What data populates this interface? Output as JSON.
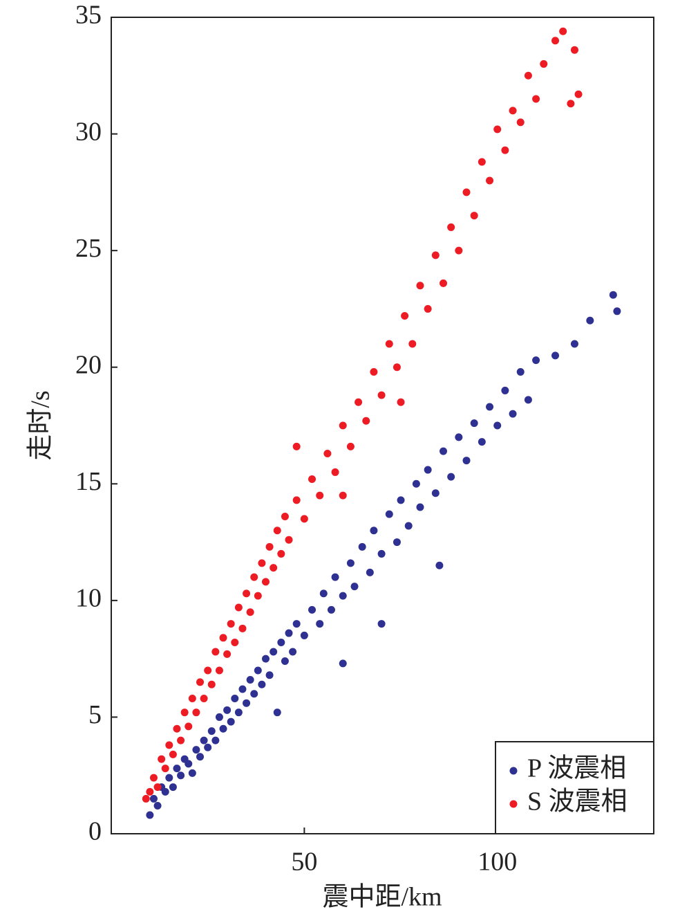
{
  "chart_data": {
    "type": "scatter",
    "xlabel": "震中距/km",
    "ylabel": "走时/s",
    "xlim": [
      0,
      140.5
    ],
    "ylim": [
      0,
      35
    ],
    "xticks": [
      50,
      100
    ],
    "yticks": [
      0,
      5,
      10,
      15,
      20,
      25,
      30,
      35
    ],
    "legend": "lower right",
    "series": [
      {
        "name": "P 波震相",
        "color": "#2e3192",
        "x": [
          10,
          11,
          12,
          13,
          14,
          15,
          16,
          17,
          18,
          19,
          20,
          21,
          22,
          23,
          24,
          25,
          26,
          27,
          28,
          29,
          30,
          31,
          32,
          33,
          34,
          35,
          36,
          37,
          38,
          39,
          40,
          41,
          42,
          43,
          44,
          45,
          46,
          47,
          48,
          50,
          52,
          54,
          55,
          57,
          58,
          60,
          62,
          63,
          65,
          67,
          68,
          70,
          72,
          74,
          75,
          77,
          79,
          80,
          82,
          84,
          86,
          88,
          90,
          92,
          94,
          96,
          98,
          100,
          102,
          104,
          106,
          108,
          110,
          115,
          120,
          124,
          130,
          131,
          60,
          70,
          85
        ],
        "values": [
          0.8,
          1.5,
          1.2,
          2.0,
          1.8,
          2.4,
          2.0,
          2.8,
          2.5,
          3.2,
          3.0,
          2.6,
          3.6,
          3.3,
          4.0,
          3.7,
          4.4,
          4.0,
          5.0,
          4.5,
          5.3,
          4.8,
          5.8,
          5.2,
          6.2,
          5.6,
          6.6,
          6.0,
          7.0,
          6.4,
          7.5,
          6.8,
          7.8,
          5.2,
          8.2,
          7.4,
          8.6,
          7.8,
          9.0,
          8.5,
          9.6,
          9.0,
          10.3,
          9.6,
          11.0,
          10.2,
          11.6,
          10.6,
          12.3,
          11.2,
          13.0,
          12.0,
          13.7,
          12.5,
          14.3,
          13.2,
          15.0,
          14.0,
          15.6,
          14.6,
          16.4,
          15.3,
          17.0,
          16.0,
          17.6,
          16.8,
          18.3,
          17.5,
          19.0,
          18.0,
          19.8,
          18.6,
          20.3,
          20.5,
          21.0,
          22.0,
          23.1,
          22.4,
          7.3,
          9.0,
          11.5
        ]
      },
      {
        "name": "S 波震相",
        "color": "#ed1c24",
        "x": [
          9,
          10,
          11,
          12,
          13,
          14,
          15,
          16,
          17,
          18,
          19,
          20,
          21,
          22,
          23,
          24,
          25,
          26,
          27,
          28,
          29,
          30,
          31,
          32,
          33,
          34,
          35,
          36,
          37,
          38,
          39,
          40,
          41,
          42,
          43,
          44,
          45,
          46,
          48,
          50,
          52,
          54,
          56,
          58,
          60,
          62,
          64,
          66,
          68,
          70,
          72,
          74,
          76,
          78,
          80,
          82,
          84,
          86,
          88,
          90,
          92,
          94,
          96,
          98,
          100,
          102,
          104,
          106,
          108,
          110,
          112,
          115,
          117,
          120,
          121,
          119,
          60,
          75,
          48
        ],
        "values": [
          1.5,
          1.8,
          2.4,
          2.0,
          3.2,
          2.8,
          3.8,
          3.4,
          4.5,
          4.0,
          5.2,
          4.6,
          5.8,
          5.2,
          6.5,
          5.8,
          7.0,
          6.4,
          7.8,
          7.0,
          8.4,
          7.7,
          9.0,
          8.2,
          9.7,
          8.8,
          10.3,
          9.5,
          11.0,
          10.2,
          11.6,
          10.8,
          12.3,
          11.4,
          13.0,
          12.0,
          13.6,
          12.6,
          14.3,
          13.5,
          15.2,
          14.5,
          16.3,
          15.5,
          17.5,
          16.6,
          18.5,
          17.7,
          19.8,
          18.8,
          21.0,
          20.0,
          22.2,
          21.0,
          23.5,
          22.5,
          24.8,
          23.6,
          26.0,
          25.0,
          27.5,
          26.5,
          28.8,
          28.0,
          30.2,
          29.3,
          31.0,
          30.5,
          32.5,
          31.5,
          33.0,
          34.0,
          34.4,
          33.6,
          31.7,
          31.3,
          14.5,
          18.5,
          16.6
        ]
      }
    ]
  }
}
